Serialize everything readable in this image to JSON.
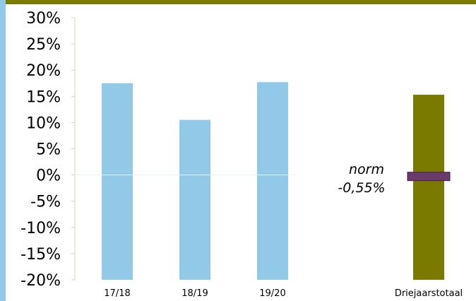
{
  "colors": {
    "bar": "#92c9e6",
    "total_bar": "#7a7a00",
    "norm_marker": "#6a3a6a",
    "frame": "#7a7a00",
    "left_strip": "#92c9e6",
    "axis": "#d8d8b0"
  },
  "chart_data": {
    "type": "bar",
    "categories": [
      "17/18",
      "18/19",
      "19/20",
      "Driejaarstotaal"
    ],
    "values": [
      17.5,
      10.5,
      17.7,
      15.3
    ],
    "y_tick_labels": [
      "30%",
      "25%",
      "20%",
      "15%",
      "10%",
      "5%",
      "0%",
      "-5%",
      "-10%",
      "-15%",
      "-20%"
    ],
    "ylim": [
      -20,
      30
    ],
    "grid": false,
    "norm": {
      "label": "norm",
      "value_label": "-0,55%",
      "value": -0.55
    }
  }
}
